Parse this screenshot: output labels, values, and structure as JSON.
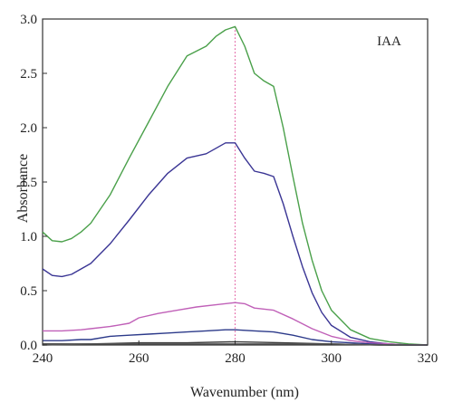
{
  "chart_data": {
    "type": "line",
    "title": "",
    "xlabel": "Wavenumber (nm)",
    "ylabel": "Absorbance",
    "xlim": [
      240,
      320
    ],
    "ylim": [
      0,
      3.0
    ],
    "x_ticks": [
      240,
      260,
      280,
      300,
      320
    ],
    "x_tick_labels": [
      "240",
      "260",
      "280",
      "300",
      "320"
    ],
    "y_ticks": [
      0,
      0.5,
      1.0,
      1.5,
      2.0,
      2.5,
      3.0
    ],
    "y_tick_labels": [
      "0.0",
      "0.5",
      "1.0",
      "1.5",
      "2.0",
      "2.5",
      "3.0"
    ],
    "grid": false,
    "legend": "none",
    "annotations": [
      {
        "text": "IAA",
        "x": 312,
        "y": 2.8
      }
    ],
    "reference_line": {
      "x": 280,
      "color": "#e0559c",
      "style": "dotted"
    },
    "series": [
      {
        "color": "#4aa04a",
        "x": [
          240,
          242,
          244,
          246,
          248,
          250,
          254,
          258,
          262,
          266,
          270,
          274,
          276,
          278,
          280,
          282,
          284,
          286,
          288,
          290,
          292,
          294,
          296,
          298,
          300,
          304,
          308,
          312,
          316,
          320
        ],
        "y": [
          1.04,
          0.96,
          0.95,
          0.98,
          1.04,
          1.12,
          1.38,
          1.72,
          2.05,
          2.38,
          2.66,
          2.75,
          2.84,
          2.9,
          2.93,
          2.75,
          2.5,
          2.43,
          2.38,
          2.0,
          1.55,
          1.12,
          0.78,
          0.5,
          0.32,
          0.14,
          0.06,
          0.03,
          0.01,
          0.0
        ]
      },
      {
        "color": "#3a3594",
        "x": [
          240,
          242,
          244,
          246,
          248,
          250,
          254,
          258,
          262,
          266,
          270,
          274,
          276,
          278,
          280,
          282,
          284,
          286,
          288,
          290,
          292,
          294,
          296,
          298,
          300,
          304,
          308,
          312,
          316,
          320
        ],
        "y": [
          0.7,
          0.64,
          0.63,
          0.65,
          0.7,
          0.75,
          0.93,
          1.15,
          1.38,
          1.58,
          1.72,
          1.76,
          1.81,
          1.86,
          1.86,
          1.72,
          1.6,
          1.58,
          1.55,
          1.3,
          1.0,
          0.72,
          0.48,
          0.3,
          0.18,
          0.07,
          0.03,
          0.01,
          0.0,
          0.0
        ]
      },
      {
        "color": "#c060b8",
        "x": [
          240,
          244,
          248,
          250,
          254,
          258,
          260,
          264,
          268,
          272,
          276,
          280,
          282,
          284,
          288,
          292,
          296,
          300,
          304,
          308,
          312,
          316,
          320
        ],
        "y": [
          0.13,
          0.13,
          0.14,
          0.15,
          0.17,
          0.2,
          0.25,
          0.29,
          0.32,
          0.35,
          0.37,
          0.39,
          0.38,
          0.34,
          0.32,
          0.24,
          0.15,
          0.08,
          0.04,
          0.02,
          0.01,
          0.0,
          0.0
        ]
      },
      {
        "color": "#2c3a8a",
        "x": [
          240,
          244,
          248,
          250,
          254,
          258,
          262,
          266,
          270,
          274,
          278,
          280,
          284,
          288,
          292,
          296,
          300,
          304,
          308,
          312,
          316,
          320
        ],
        "y": [
          0.04,
          0.04,
          0.05,
          0.05,
          0.08,
          0.09,
          0.1,
          0.11,
          0.12,
          0.13,
          0.14,
          0.14,
          0.13,
          0.12,
          0.09,
          0.05,
          0.03,
          0.02,
          0.01,
          0.0,
          0.0,
          0.0
        ]
      },
      {
        "color": "#3a3a3a",
        "x": [
          240,
          250,
          260,
          270,
          280,
          290,
          300,
          310,
          320
        ],
        "y": [
          0.01,
          0.01,
          0.02,
          0.02,
          0.03,
          0.02,
          0.01,
          0.0,
          0.0
        ]
      },
      {
        "color": "#555555",
        "x": [
          240,
          250,
          260,
          270,
          280,
          290,
          300,
          310,
          320
        ],
        "y": [
          0.0,
          0.01,
          0.01,
          0.01,
          0.01,
          0.01,
          0.01,
          0.0,
          0.0
        ]
      }
    ]
  }
}
